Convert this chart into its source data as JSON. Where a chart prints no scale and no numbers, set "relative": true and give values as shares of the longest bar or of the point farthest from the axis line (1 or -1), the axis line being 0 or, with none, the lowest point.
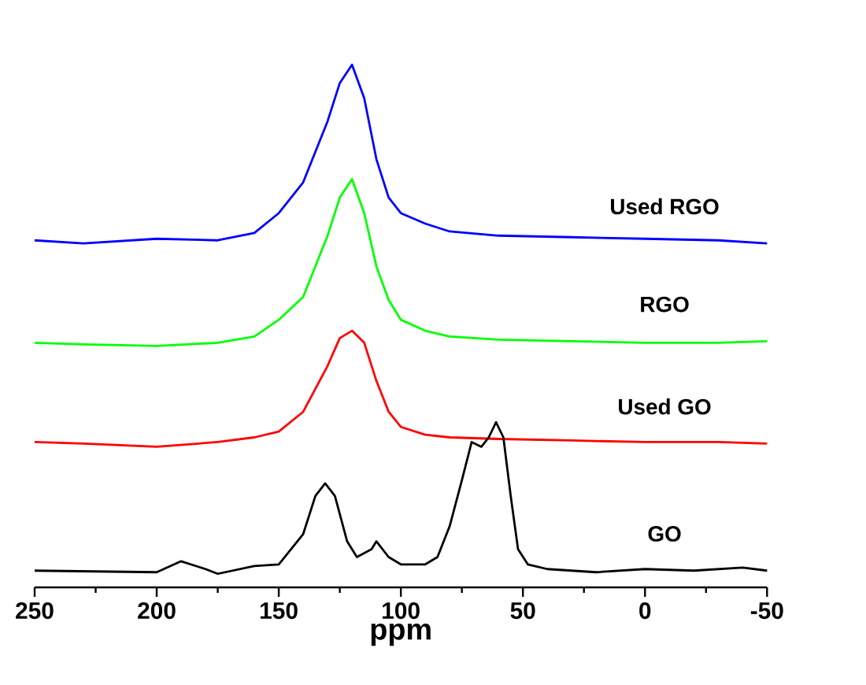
{
  "chart_data": {
    "type": "line",
    "relative": true,
    "xlabel": "ppm",
    "xlim": [
      250,
      -50
    ],
    "xticks": [
      250,
      200,
      150,
      100,
      50,
      0,
      -50
    ],
    "tick_labels": "x",
    "series": [
      {
        "name": "Used RGO",
        "color": "#0000ff",
        "x": [
          250,
          230,
          200,
          175,
          160,
          150,
          140,
          130,
          125,
          120,
          115,
          110,
          105,
          100,
          90,
          80,
          60,
          30,
          0,
          -30,
          -50
        ],
        "values": [
          0.664,
          0.658,
          0.667,
          0.664,
          0.678,
          0.716,
          0.775,
          0.892,
          0.965,
          1.0,
          0.936,
          0.819,
          0.746,
          0.716,
          0.696,
          0.681,
          0.673,
          0.67,
          0.667,
          0.664,
          0.658
        ]
      },
      {
        "name": "RGO",
        "color": "#00ff00",
        "x": [
          250,
          230,
          200,
          175,
          160,
          150,
          140,
          130,
          125,
          120,
          115,
          110,
          105,
          100,
          90,
          80,
          60,
          30,
          0,
          -30,
          -50
        ],
        "values": [
          0.468,
          0.465,
          0.462,
          0.468,
          0.48,
          0.512,
          0.556,
          0.673,
          0.746,
          0.781,
          0.716,
          0.614,
          0.55,
          0.512,
          0.491,
          0.48,
          0.474,
          0.471,
          0.468,
          0.468,
          0.471
        ]
      },
      {
        "name": "Used GO",
        "color": "#ff0000",
        "x": [
          250,
          230,
          200,
          175,
          160,
          150,
          140,
          130,
          125,
          120,
          115,
          110,
          105,
          100,
          90,
          80,
          60,
          30,
          0,
          -30,
          -50
        ],
        "values": [
          0.278,
          0.275,
          0.269,
          0.278,
          0.287,
          0.298,
          0.336,
          0.424,
          0.477,
          0.491,
          0.468,
          0.395,
          0.336,
          0.307,
          0.292,
          0.287,
          0.284,
          0.281,
          0.278,
          0.278,
          0.275
        ]
      },
      {
        "name": "GO",
        "color": "#000000",
        "x": [
          250,
          200,
          190,
          180,
          175,
          160,
          150,
          140,
          135,
          131,
          127,
          122,
          118,
          112,
          110,
          105,
          100,
          90,
          85,
          80,
          75,
          71,
          67,
          64,
          61,
          58,
          55,
          52,
          48,
          40,
          20,
          0,
          -20,
          -40,
          -50
        ],
        "values": [
          0.032,
          0.029,
          0.05,
          0.035,
          0.026,
          0.041,
          0.044,
          0.102,
          0.175,
          0.199,
          0.175,
          0.088,
          0.058,
          0.073,
          0.088,
          0.058,
          0.044,
          0.044,
          0.058,
          0.117,
          0.205,
          0.278,
          0.269,
          0.287,
          0.316,
          0.287,
          0.175,
          0.073,
          0.044,
          0.035,
          0.029,
          0.035,
          0.032,
          0.038,
          0.032
        ]
      }
    ]
  }
}
